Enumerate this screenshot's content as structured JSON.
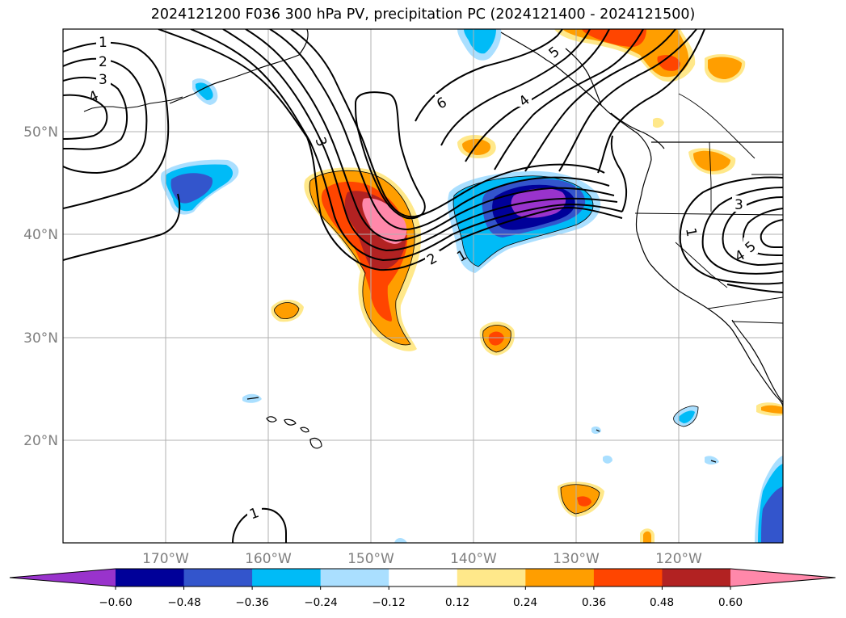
{
  "title": "2024121200 F036 300 hPa PV, precipitation PC (2024121400 - 2024121500)",
  "axes": {
    "lat_labels": [
      "50°N",
      "40°N",
      "30°N",
      "20°N"
    ],
    "lon_labels": [
      "170°W",
      "160°W",
      "150°W",
      "140°W",
      "130°W",
      "120°W"
    ]
  },
  "colorbar": {
    "tick_labels": [
      "−0.60",
      "−0.48",
      "−0.36",
      "−0.24",
      "−0.12",
      "0.12",
      "0.24",
      "0.36",
      "0.48",
      "0.60"
    ],
    "colors": [
      "#9933cc",
      "#000099",
      "#3355cc",
      "#00bbf7",
      "#aadfff",
      "#ffffff",
      "#ffe88a",
      "#ff9e00",
      "#ff4500",
      "#b22222",
      "#ff88aa"
    ],
    "extend": "both"
  },
  "contour_labels": [
    "1",
    "2",
    "3",
    "4",
    "6",
    "3",
    "2",
    "1",
    "4",
    "5",
    "3",
    "1",
    "4",
    "5",
    "1"
  ],
  "colors": {
    "positive_strong": "#ff88aa",
    "negative_strong": "#9933cc",
    "gridline": "#b0b0b0",
    "coastline": "#000000"
  }
}
